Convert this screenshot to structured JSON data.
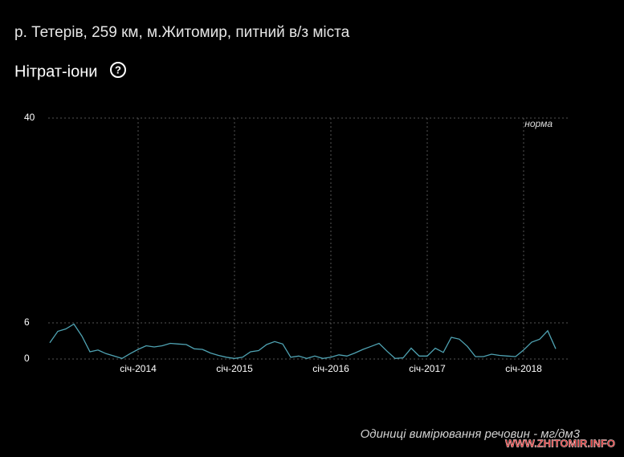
{
  "chart_data": {
    "type": "line",
    "title": "р. Тетерів, 259 км, м.Житомир, питний в/з міста",
    "subtitle": "Нітрат-іони",
    "annotation": "норма",
    "footnote": "Одиниці вимірювання речовин - мг/дм3",
    "watermark": "WWW.ZHITOMIR.INFO",
    "x": [
      "2013-02",
      "2013-03",
      "2013-04",
      "2013-05",
      "2013-06",
      "2013-07",
      "2013-08",
      "2013-09",
      "2013-10",
      "2013-11",
      "2013-12",
      "2014-01",
      "2014-02",
      "2014-03",
      "2014-04",
      "2014-05",
      "2014-06",
      "2014-07",
      "2014-08",
      "2014-09",
      "2014-10",
      "2014-11",
      "2014-12",
      "2015-01",
      "2015-02",
      "2015-03",
      "2015-04",
      "2015-05",
      "2015-06",
      "2015-07",
      "2015-08",
      "2015-09",
      "2015-10",
      "2015-11",
      "2015-12",
      "2016-01",
      "2016-02",
      "2016-03",
      "2016-04",
      "2016-05",
      "2016-06",
      "2016-07",
      "2016-08",
      "2016-09",
      "2016-10",
      "2016-11",
      "2016-12",
      "2017-01",
      "2017-02",
      "2017-03",
      "2017-04",
      "2017-05",
      "2017-06",
      "2017-07",
      "2017-08",
      "2017-09",
      "2017-10",
      "2017-11",
      "2017-12",
      "2018-01",
      "2018-02",
      "2018-03",
      "2018-04",
      "2018-05"
    ],
    "series": [
      {
        "name": "Нітрат-іони",
        "color": "#4fa3b3",
        "values": [
          2.7,
          4.6,
          5.0,
          5.8,
          3.8,
          1.2,
          1.5,
          0.9,
          0.5,
          0.1,
          0.9,
          1.6,
          2.2,
          2.0,
          2.2,
          2.6,
          2.5,
          2.4,
          1.7,
          1.6,
          1.0,
          0.6,
          0.3,
          0.1,
          0.3,
          1.2,
          1.4,
          2.4,
          2.9,
          2.5,
          0.3,
          0.5,
          0.1,
          0.5,
          0.1,
          0.3,
          0.7,
          0.5,
          1.0,
          1.6,
          2.1,
          2.6,
          1.3,
          0.1,
          0.2,
          1.8,
          0.5,
          0.5,
          1.8,
          1.1,
          3.6,
          3.3,
          2.1,
          0.4,
          0.4,
          0.8,
          0.6,
          0.5,
          0.4,
          1.5,
          2.8,
          3.3,
          4.7,
          1.7
        ]
      }
    ],
    "xlim": [
      "2013-02",
      "2018-05"
    ],
    "xticks": [
      {
        "value": "2014-01",
        "label": "січ-2014"
      },
      {
        "value": "2015-01",
        "label": "січ-2015"
      },
      {
        "value": "2016-01",
        "label": "січ-2016"
      },
      {
        "value": "2017-01",
        "label": "січ-2017"
      },
      {
        "value": "2018-01",
        "label": "січ-2018"
      }
    ],
    "ylim": [
      0,
      40
    ],
    "yticks": [
      0,
      6,
      40
    ],
    "grid": true
  }
}
